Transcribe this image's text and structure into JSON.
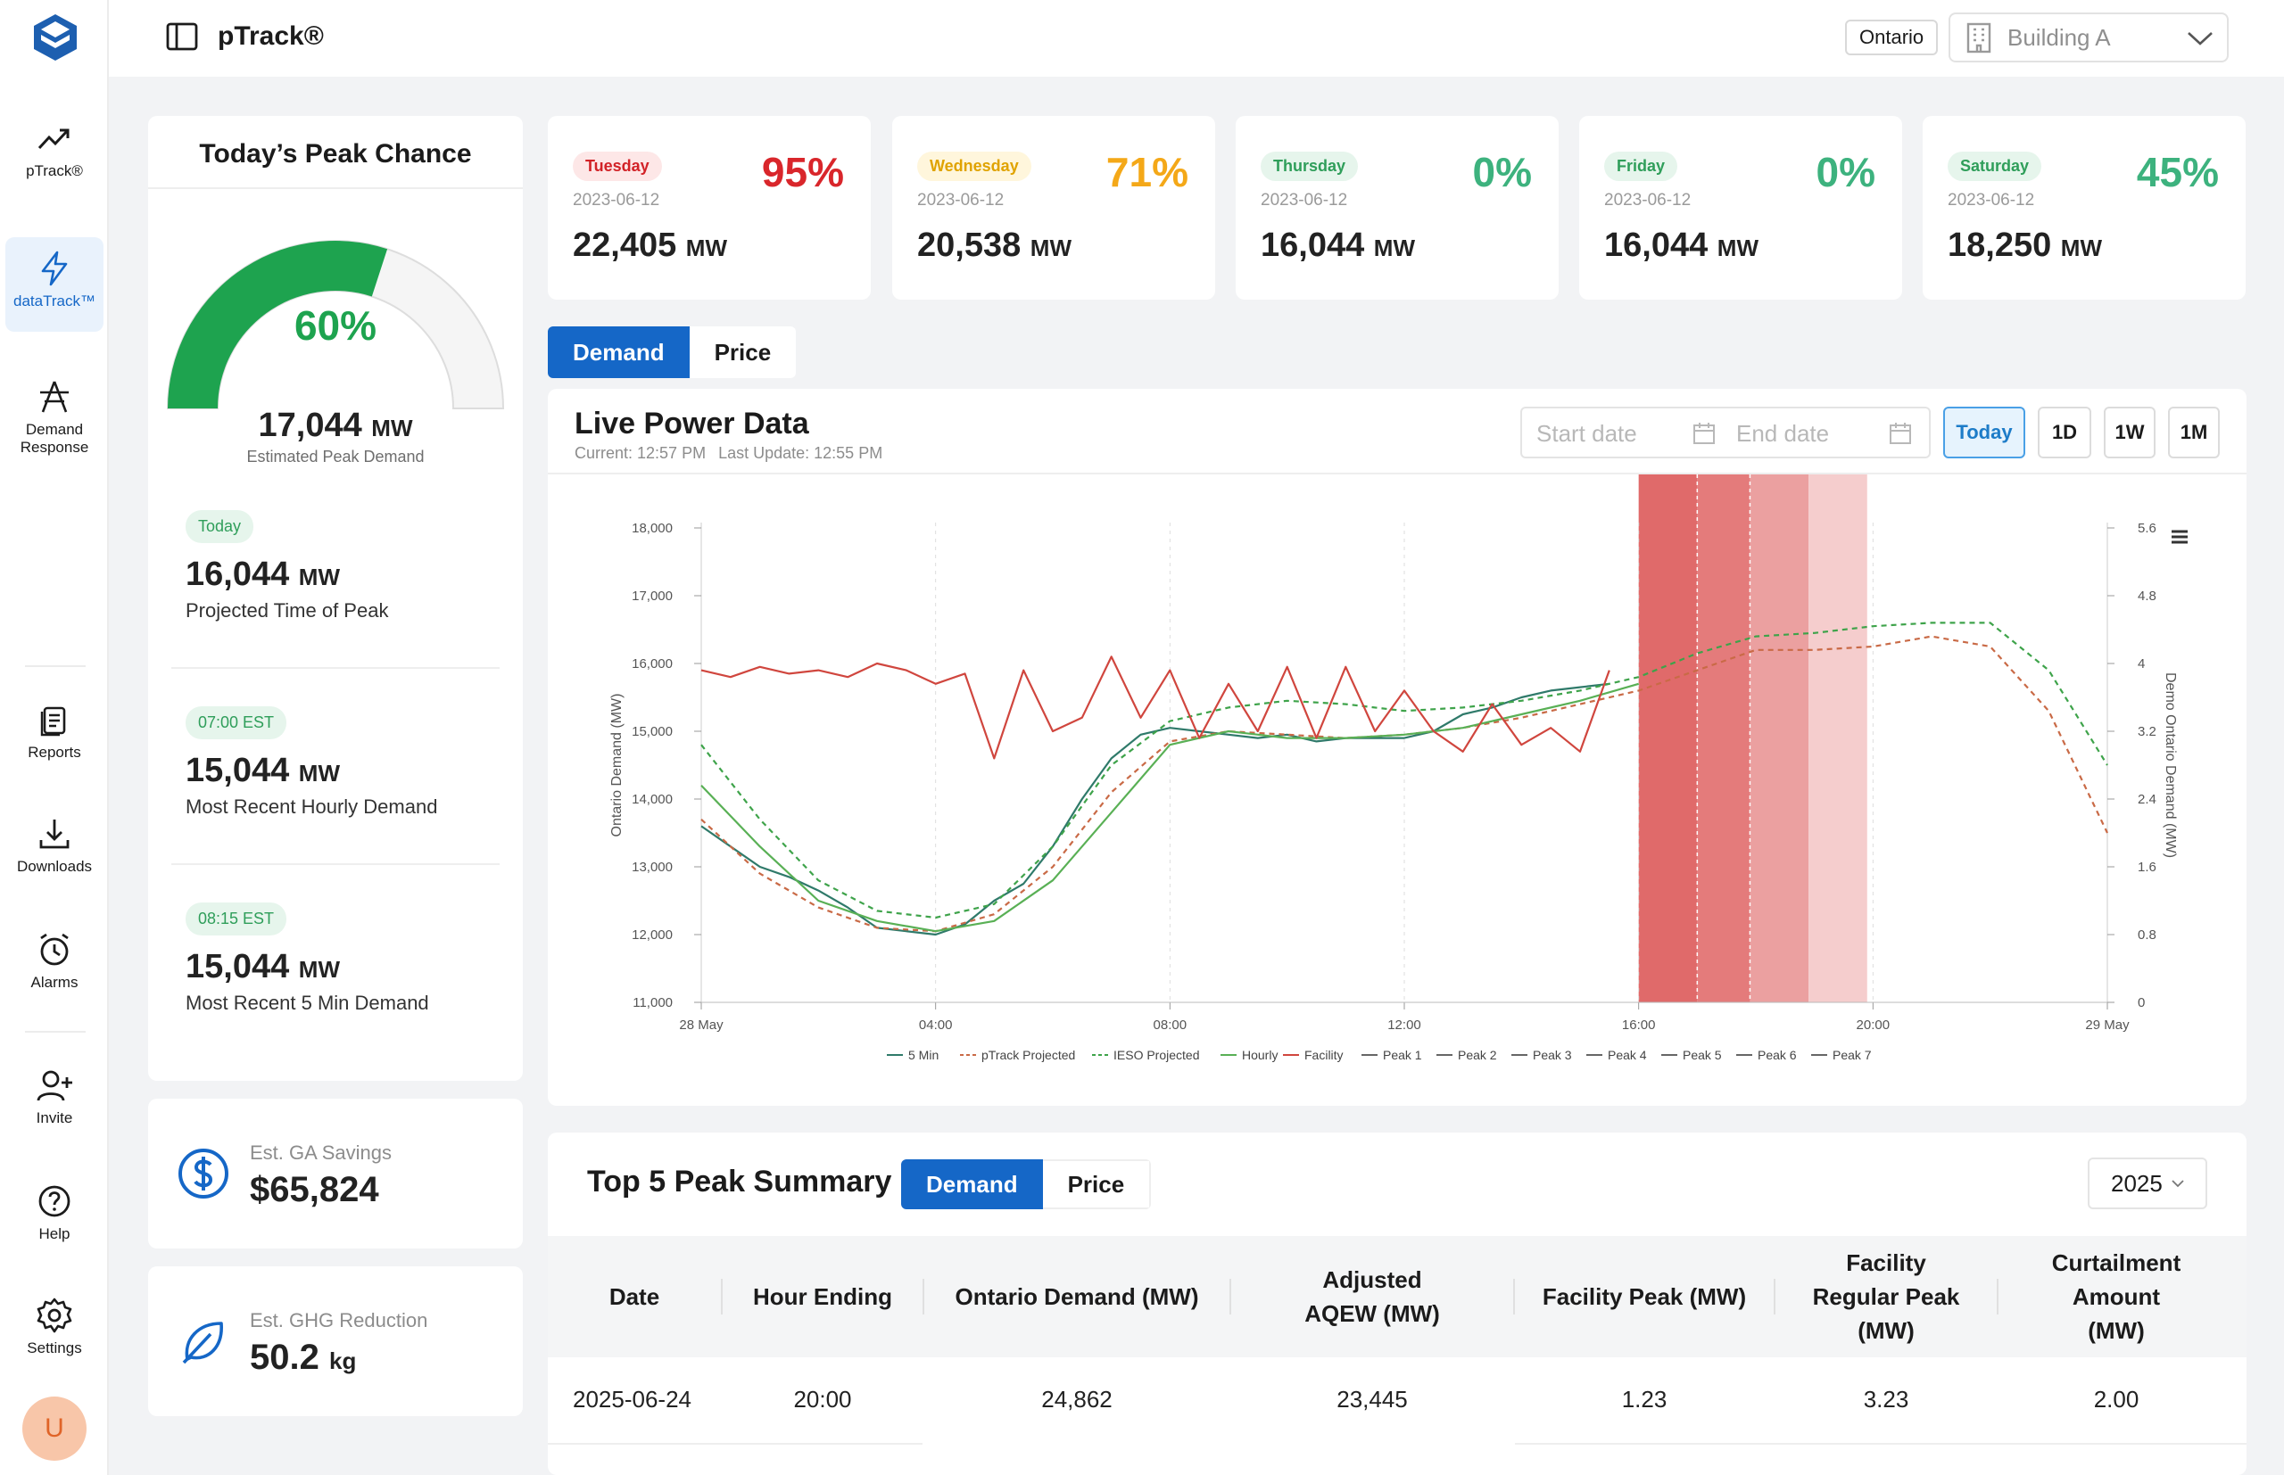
{
  "app": {
    "title": "pTrack®",
    "region": "Ontario",
    "building": "Building A"
  },
  "sidebar": {
    "items": [
      {
        "label": "pTrack®",
        "icon": "trend-up-icon"
      },
      {
        "label": "dataTrack™",
        "icon": "lightning-icon"
      },
      {
        "label": "Demand Response",
        "icon": "tower-icon"
      },
      {
        "label": "Reports",
        "icon": "reports-icon"
      },
      {
        "label": "Downloads",
        "icon": "download-icon"
      },
      {
        "label": "Alarms",
        "icon": "alarm-icon"
      },
      {
        "label": "Invite",
        "icon": "add-user-icon"
      },
      {
        "label": "Help",
        "icon": "help-icon"
      },
      {
        "label": "Settings",
        "icon": "gear-icon"
      }
    ],
    "avatar_initial": "U"
  },
  "peak_chance": {
    "title": "Today’s Peak Chance",
    "percent": "60%",
    "percent_value": 0.6,
    "estimated_value": "17,044",
    "estimated_unit": "MW",
    "estimated_label": "Estimated Peak Demand",
    "blocks": [
      {
        "tag": "Today",
        "value": "16,044",
        "unit": "MW",
        "label": "Projected Time of Peak"
      },
      {
        "tag": "07:00 EST",
        "value": "15,044",
        "unit": "MW",
        "label": "Most Recent Hourly Demand"
      },
      {
        "tag": "08:15 EST",
        "value": "15,044",
        "unit": "MW",
        "label": "Most Recent 5 Min Demand"
      }
    ]
  },
  "savings": {
    "label": "Est. GA Savings",
    "value": "$65,824"
  },
  "ghg": {
    "label": "Est. GHG Reduction",
    "value": "50.2",
    "unit": "kg"
  },
  "days": [
    {
      "day": "Tuesday",
      "date": "2023-06-12",
      "pct": "95%",
      "value": "22,405",
      "unit": "MW",
      "color": "#d9262b",
      "tag_bg": "#fde7e7",
      "tag_fg": "#d22227"
    },
    {
      "day": "Wednesday",
      "date": "2023-06-12",
      "pct": "71%",
      "value": "20,538",
      "unit": "MW",
      "color": "#f4a818",
      "tag_bg": "#fff6dc",
      "tag_fg": "#e0a300"
    },
    {
      "day": "Thursday",
      "date": "2023-06-12",
      "pct": "0%",
      "value": "16,044",
      "unit": "MW",
      "color": "#3db27e",
      "tag_bg": "#e6f5ec",
      "tag_fg": "#2f9e5a"
    },
    {
      "day": "Friday",
      "date": "2023-06-12",
      "pct": "0%",
      "value": "16,044",
      "unit": "MW",
      "color": "#3db27e",
      "tag_bg": "#e6f5ec",
      "tag_fg": "#2f9e5a"
    },
    {
      "day": "Saturday",
      "date": "2023-06-12",
      "pct": "45%",
      "value": "18,250",
      "unit": "MW",
      "color": "#3db27e",
      "tag_bg": "#e6f5ec",
      "tag_fg": "#2f9e5a"
    }
  ],
  "main_tabs": [
    "Demand",
    "Price"
  ],
  "live": {
    "title": "Live Power Data",
    "current": "Current: 12:57 PM",
    "last_update": "Last Update: 12:55 PM",
    "start_placeholder": "Start date",
    "end_placeholder": "End date",
    "ranges": [
      "Today",
      "1D",
      "1W",
      "1M"
    ]
  },
  "chart_data": {
    "type": "line",
    "ylabel": "Ontario Demand (MW)",
    "y2label": "Demo Ontario Demand (MW)",
    "ylim": [
      11000,
      18000
    ],
    "y2lim": [
      0,
      5.6
    ],
    "y_ticks": [
      "11,000",
      "12,000",
      "13,000",
      "14,000",
      "15,000",
      "16,000",
      "17,000",
      "18,000"
    ],
    "y2_ticks": [
      "0",
      "0.8",
      "1.6",
      "2.4",
      "3.2",
      "4",
      "4.8",
      "5.6"
    ],
    "x_ticks": [
      "28 May",
      "04:00",
      "08:00",
      "12:00",
      "16:00",
      "20:00",
      "29 May"
    ],
    "xlim_hours": [
      0,
      24
    ],
    "peak_bands": [
      {
        "from": 16.0,
        "to": 17.0,
        "color": "#e06a6a"
      },
      {
        "from": 17.0,
        "to": 17.9,
        "color": "#e47b7b"
      },
      {
        "from": 17.9,
        "to": 18.9,
        "color": "#eba0a0"
      },
      {
        "from": 18.9,
        "to": 19.9,
        "color": "#f5cdcd"
      }
    ],
    "peak_lines_hours": [
      17.0,
      17.9
    ],
    "series": [
      {
        "name": "5 Min",
        "color": "#2f7a6a",
        "dash": "",
        "x": [
          0,
          0.5,
          1,
          1.5,
          2,
          2.5,
          3,
          3.5,
          4,
          4.5,
          5,
          5.5,
          6,
          6.5,
          7,
          7.5,
          8,
          8.5,
          9,
          9.5,
          10,
          10.5,
          11,
          11.5,
          12,
          12.5,
          13,
          13.5,
          14,
          14.5,
          15,
          15.5
        ],
        "y": [
          13600,
          13300,
          13000,
          12850,
          12650,
          12400,
          12100,
          12050,
          12000,
          12150,
          12500,
          12750,
          13300,
          14000,
          14600,
          14950,
          15050,
          15000,
          14950,
          14900,
          14950,
          14850,
          14900,
          14900,
          14900,
          15000,
          15250,
          15350,
          15500,
          15600,
          15650,
          15700
        ]
      },
      {
        "name": "pTrack Projected",
        "color": "#c96a46",
        "dash": "6,5",
        "x": [
          0,
          1,
          2,
          3,
          4,
          5,
          6,
          7,
          8,
          9,
          10,
          11,
          12,
          13,
          14,
          15,
          16,
          17,
          18,
          19,
          20,
          21,
          22,
          23,
          24
        ],
        "y": [
          13700,
          12900,
          12400,
          12100,
          12050,
          12300,
          13000,
          14100,
          14850,
          15000,
          14950,
          14900,
          14950,
          15050,
          15200,
          15400,
          15600,
          15900,
          16200,
          16200,
          16250,
          16400,
          16250,
          15300,
          13500
        ]
      },
      {
        "name": "IESO Projected",
        "color": "#3ea34a",
        "dash": "6,5",
        "x": [
          0,
          1,
          2,
          3,
          4,
          5,
          6,
          7,
          8,
          9,
          10,
          11,
          12,
          13,
          14,
          15,
          16,
          17,
          18,
          19,
          20,
          21,
          22,
          23,
          24
        ],
        "y": [
          14800,
          13700,
          12800,
          12350,
          12250,
          12450,
          13300,
          14500,
          15150,
          15350,
          15450,
          15400,
          15300,
          15350,
          15450,
          15600,
          15800,
          16150,
          16400,
          16450,
          16550,
          16600,
          16600,
          15900,
          14500
        ]
      },
      {
        "name": "Hourly",
        "color": "#59b055",
        "dash": "",
        "x": [
          0,
          1,
          2,
          3,
          4,
          5,
          6,
          7,
          8,
          9,
          10,
          11,
          12,
          13,
          14,
          15,
          16
        ],
        "y": [
          14200,
          13300,
          12500,
          12200,
          12050,
          12200,
          12800,
          13800,
          14800,
          15000,
          14900,
          14900,
          14950,
          15050,
          15250,
          15450,
          15700
        ]
      },
      {
        "name": "Facility",
        "color": "#d0463e",
        "dash": "",
        "x": [
          0,
          0.5,
          1,
          1.5,
          2,
          2.5,
          3,
          3.5,
          4,
          4.5,
          5,
          5.5,
          6,
          6.5,
          7,
          7.5,
          8,
          8.5,
          9,
          9.5,
          10,
          10.5,
          11,
          11.5,
          12,
          12.5,
          13,
          13.5,
          14,
          14.5,
          15,
          15.5
        ],
        "y": [
          15900,
          15800,
          15950,
          15850,
          15900,
          15800,
          16000,
          15900,
          15700,
          15850,
          14600,
          15900,
          15000,
          15200,
          16100,
          15200,
          15900,
          14900,
          15700,
          15000,
          15950,
          14900,
          15950,
          15000,
          15600,
          15000,
          14700,
          15400,
          14800,
          15050,
          14700,
          15900
        ]
      },
      {
        "name": "Peak 1",
        "color": "#666",
        "dash": "",
        "x": [],
        "y": []
      },
      {
        "name": "Peak 2",
        "color": "#666",
        "dash": "",
        "x": [],
        "y": []
      },
      {
        "name": "Peak 3",
        "color": "#666",
        "dash": "",
        "x": [],
        "y": []
      },
      {
        "name": "Peak 4",
        "color": "#666",
        "dash": "",
        "x": [],
        "y": []
      },
      {
        "name": "Peak 5",
        "color": "#666",
        "dash": "",
        "x": [],
        "y": []
      },
      {
        "name": "Peak 6",
        "color": "#666",
        "dash": "",
        "x": [],
        "y": []
      },
      {
        "name": "Peak 7",
        "color": "#666",
        "dash": "",
        "x": [],
        "y": []
      }
    ],
    "legend_position": "bottom",
    "grid": "vertical dashed"
  },
  "summary": {
    "title": "Top 5 Peak Summary",
    "tabs": [
      "Demand",
      "Price"
    ],
    "year": "2025",
    "columns": [
      "Date",
      "Hour Ending",
      "Ontario Demand (MW)",
      "Adjusted AQEW (MW)",
      "Facility Peak (MW)",
      "Facility Regular Peak (MW)",
      "Curtailment Amount (MW)"
    ],
    "rows": [
      [
        "2025-06-24",
        "20:00",
        "24,862",
        "23,445",
        "1.23",
        "3.23",
        "2.00"
      ]
    ]
  }
}
